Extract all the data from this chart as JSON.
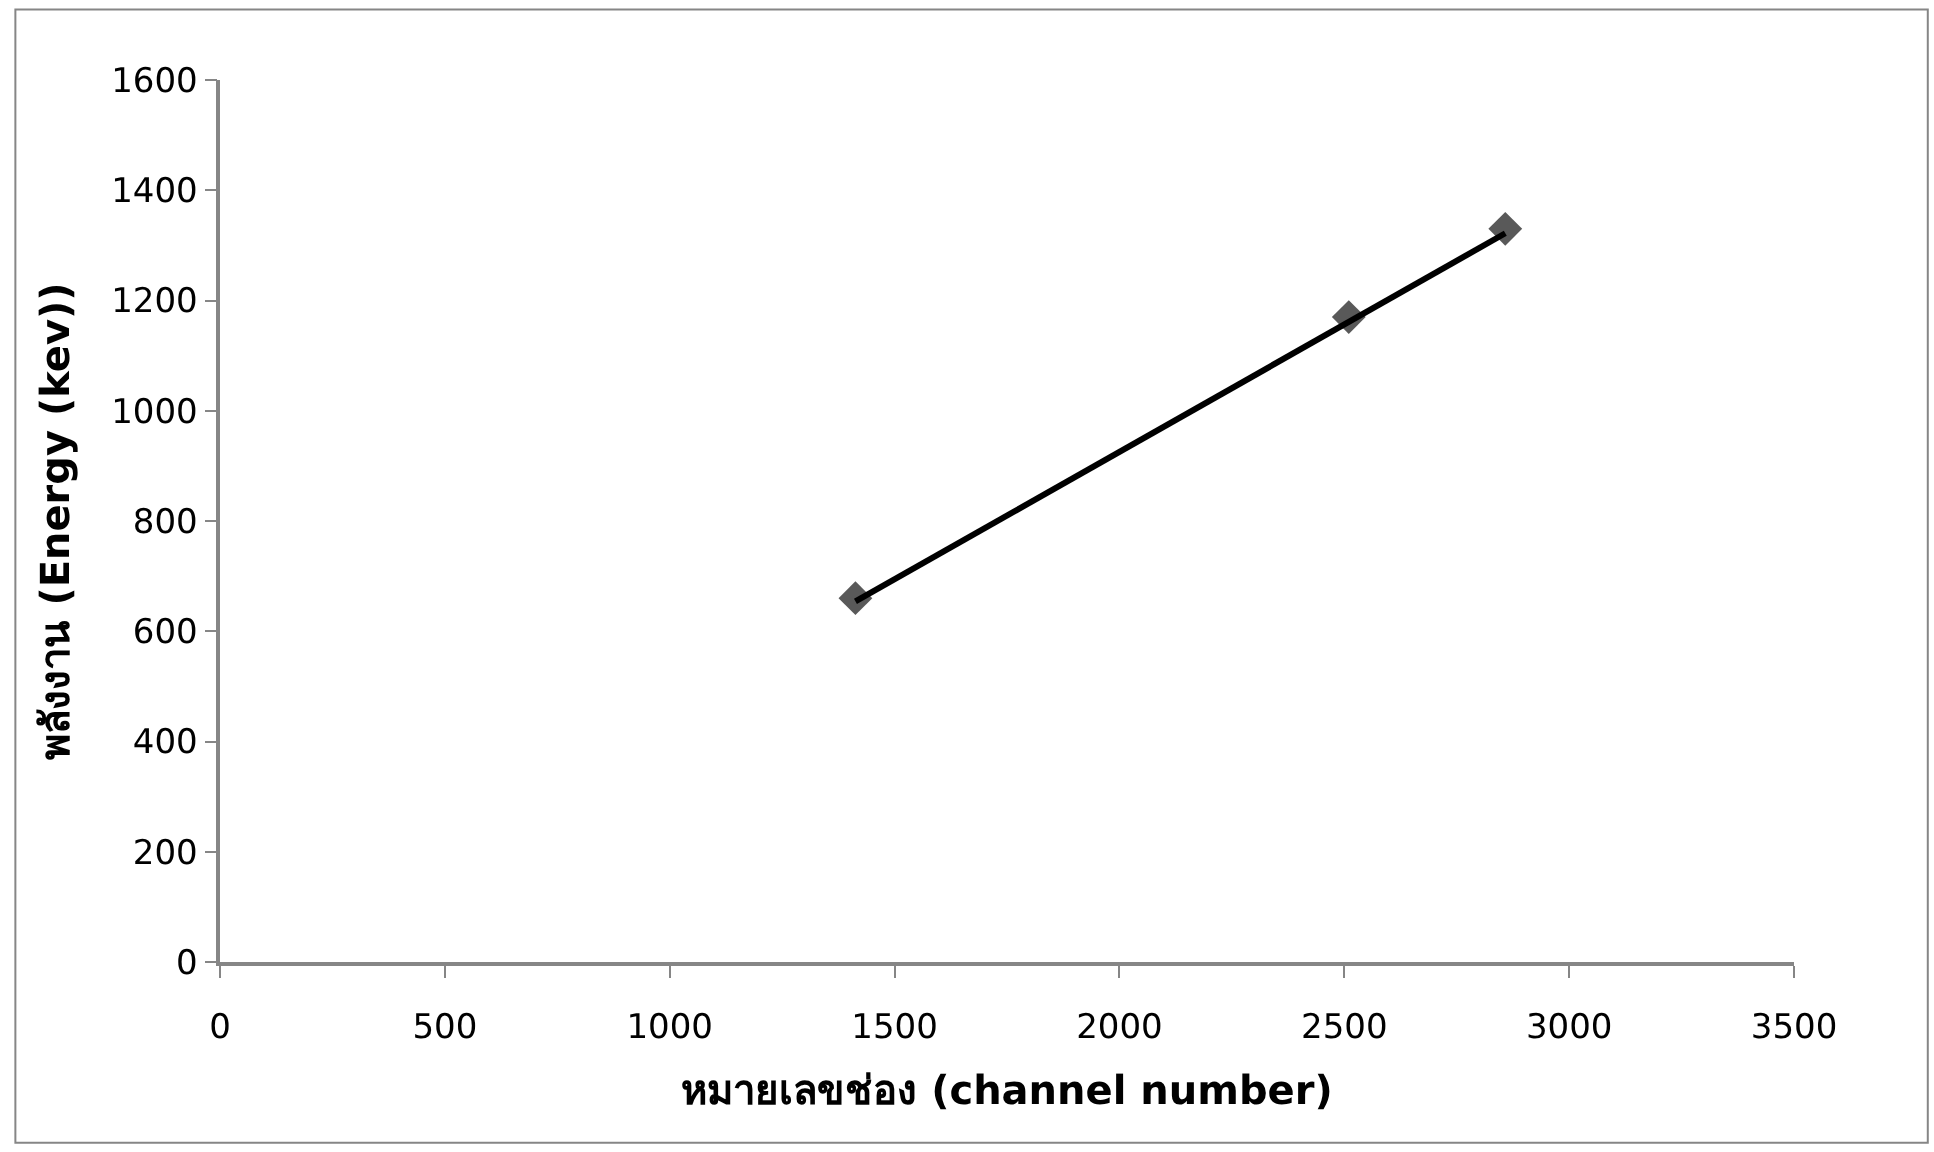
{
  "chart_data": {
    "type": "scatter",
    "xlabel": "หมายเลขช่อง (channel number)",
    "ylabel": "พลังงาน (Energy (kev))",
    "series": [
      {
        "color": "#595959",
        "x": [
          1413,
          2510,
          2858
        ],
        "values": [
          660,
          1170,
          1330
        ],
        "marker": "diamond"
      },
      {
        "type": "line",
        "color": "#000000",
        "x": [
          1413,
          2858
        ],
        "values": [
          654,
          1322
        ],
        "marker": "none"
      }
    ],
    "xlim": [
      0,
      3500
    ],
    "xticks": [
      0,
      500,
      1000,
      1500,
      2000,
      2500,
      3000,
      3500
    ],
    "ylim": [
      0,
      1600
    ],
    "yticks": [
      0,
      200,
      400,
      600,
      800,
      1000,
      1200,
      1400,
      1600
    ]
  }
}
